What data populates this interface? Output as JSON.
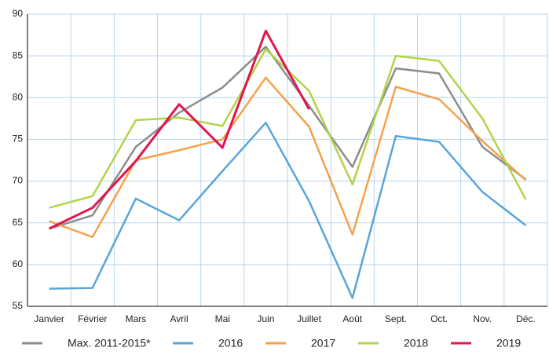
{
  "chart_data": {
    "type": "line",
    "categories": [
      "Janvier",
      "Février",
      "Mars",
      "Avril",
      "Mai",
      "Juin",
      "Juillet",
      "Août",
      "Sept.",
      "Oct.",
      "Nov.",
      "Déc."
    ],
    "series": [
      {
        "name": "Max. 2011-2015*",
        "color": "#8c8c8c",
        "values": [
          64.3,
          65.9,
          74.1,
          78.2,
          81.2,
          86.1,
          79.0,
          71.7,
          83.5,
          82.9,
          74.1,
          70.2
        ]
      },
      {
        "name": "2016",
        "color": "#5aa5d8",
        "values": [
          57.1,
          57.2,
          67.9,
          65.3,
          71.2,
          77.0,
          67.6,
          56.0,
          75.4,
          74.7,
          68.7,
          64.7
        ]
      },
      {
        "name": "2017",
        "color": "#f5a14b",
        "values": [
          65.2,
          63.3,
          72.5,
          73.7,
          75.0,
          82.4,
          76.5,
          63.6,
          81.3,
          79.8,
          74.8,
          70.1
        ]
      },
      {
        "name": "2018",
        "color": "#b0d44a",
        "values": [
          66.8,
          68.2,
          77.3,
          77.6,
          76.6,
          85.8,
          80.8,
          69.6,
          85.0,
          84.4,
          77.5,
          67.8
        ]
      },
      {
        "name": "2019",
        "color": "#e0174f",
        "values": [
          64.3,
          66.8,
          72.4,
          79.2,
          74.0,
          88.0,
          78.6,
          null,
          null,
          null,
          null,
          null
        ]
      }
    ],
    "ylim": [
      55,
      90
    ],
    "yticks": [
      55,
      60,
      65,
      70,
      75,
      80,
      85,
      90
    ],
    "grid": true,
    "legend": "bottom"
  }
}
